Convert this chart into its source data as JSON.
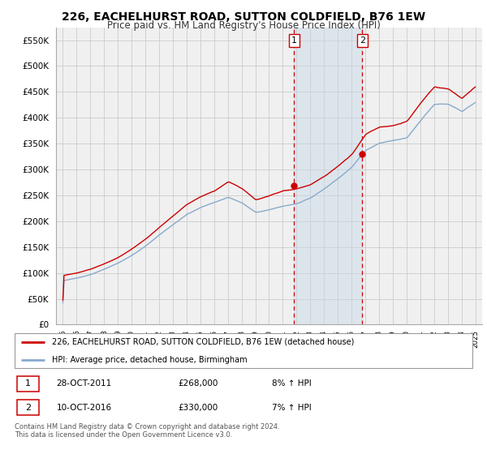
{
  "title": "226, EACHELHURST ROAD, SUTTON COLDFIELD, B76 1EW",
  "subtitle": "Price paid vs. HM Land Registry's House Price Index (HPI)",
  "legend_line1": "226, EACHELHURST ROAD, SUTTON COLDFIELD, B76 1EW (detached house)",
  "legend_line2": "HPI: Average price, detached house, Birmingham",
  "transaction1_date": "28-OCT-2011",
  "transaction1_price": "£268,000",
  "transaction1_hpi": "8% ↑ HPI",
  "transaction2_date": "10-OCT-2016",
  "transaction2_price": "£330,000",
  "transaction2_hpi": "7% ↑ HPI",
  "footer": "Contains HM Land Registry data © Crown copyright and database right 2024.\nThis data is licensed under the Open Government Licence v3.0.",
  "red_color": "#cc0000",
  "blue_color": "#88aacc",
  "background_color": "#ffffff",
  "grid_color": "#cccccc",
  "chart_bg": "#f0f0f0",
  "transaction1_year": 2011.82,
  "transaction2_year": 2016.78,
  "transaction1_price_val": 268000,
  "transaction2_price_val": 330000,
  "ylim_max": 575000,
  "ylim_min": 0,
  "xmin": 1994.5,
  "xmax": 2025.5
}
